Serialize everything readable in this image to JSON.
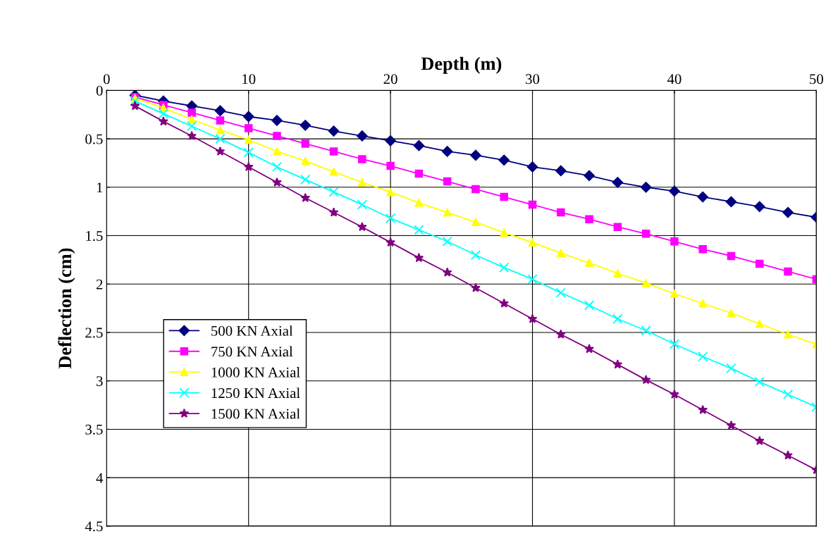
{
  "chart_data": {
    "type": "line",
    "xlabel": "Depth (m)",
    "ylabel": "Deflection (cm)",
    "x": [
      2,
      4,
      6,
      8,
      10,
      12,
      14,
      16,
      18,
      20,
      22,
      24,
      26,
      28,
      30,
      32,
      34,
      36,
      38,
      40,
      42,
      44,
      46,
      48,
      50
    ],
    "series": [
      {
        "name": "500 KN Axial",
        "color": "#000080",
        "marker": "diamond",
        "values": [
          0.05,
          0.11,
          0.16,
          0.21,
          0.27,
          0.31,
          0.36,
          0.42,
          0.47,
          0.52,
          0.57,
          0.63,
          0.67,
          0.72,
          0.79,
          0.83,
          0.88,
          0.95,
          1.0,
          1.04,
          1.1,
          1.15,
          1.2,
          1.26,
          1.31
        ]
      },
      {
        "name": "750 KN Axial",
        "color": "#ff00ff",
        "marker": "square",
        "values": [
          0.07,
          0.15,
          0.23,
          0.31,
          0.39,
          0.47,
          0.55,
          0.63,
          0.71,
          0.78,
          0.86,
          0.94,
          1.02,
          1.1,
          1.18,
          1.26,
          1.33,
          1.41,
          1.48,
          1.56,
          1.64,
          1.71,
          1.79,
          1.87,
          1.95
        ]
      },
      {
        "name": "1000 KN Axial",
        "color": "#ffff00",
        "marker": "triangle",
        "values": [
          0.08,
          0.18,
          0.3,
          0.41,
          0.51,
          0.63,
          0.73,
          0.84,
          0.95,
          1.05,
          1.16,
          1.26,
          1.36,
          1.47,
          1.57,
          1.68,
          1.78,
          1.89,
          1.99,
          2.1,
          2.2,
          2.3,
          2.41,
          2.52,
          2.62
        ]
      },
      {
        "name": "1250 KN Axial",
        "color": "#00ffff",
        "marker": "cross",
        "values": [
          0.11,
          0.24,
          0.37,
          0.5,
          0.64,
          0.79,
          0.92,
          1.05,
          1.18,
          1.32,
          1.44,
          1.56,
          1.7,
          1.83,
          1.95,
          2.09,
          2.22,
          2.36,
          2.48,
          2.62,
          2.75,
          2.87,
          3.01,
          3.14,
          3.27
        ]
      },
      {
        "name": "1500 KN Axial",
        "color": "#800080",
        "marker": "star",
        "values": [
          0.16,
          0.32,
          0.47,
          0.63,
          0.79,
          0.95,
          1.11,
          1.26,
          1.41,
          1.57,
          1.73,
          1.88,
          2.04,
          2.2,
          2.36,
          2.52,
          2.67,
          2.83,
          2.99,
          3.14,
          3.3,
          3.46,
          3.62,
          3.77,
          3.92
        ]
      }
    ],
    "xlim": [
      0,
      50
    ],
    "xticks": [
      0,
      10,
      20,
      30,
      40,
      50
    ],
    "ylim": [
      4.5,
      0
    ],
    "yticks": [
      0,
      0.5,
      1,
      1.5,
      2,
      2.5,
      3,
      3.5,
      4,
      4.5
    ],
    "grid": true,
    "legend": "center left",
    "line_style": "solid"
  }
}
